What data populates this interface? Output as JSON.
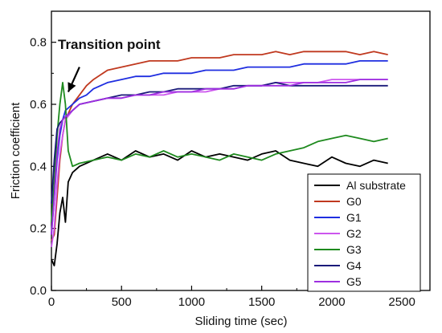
{
  "chart_data": {
    "type": "line",
    "xlabel": "Sliding time (sec)",
    "ylabel": "Friction coefficient",
    "xlim": [
      0,
      2700
    ],
    "ylim": [
      0.0,
      0.9
    ],
    "xticks": [
      0,
      500,
      1000,
      1500,
      2000,
      2500
    ],
    "yticks": [
      0.0,
      0.2,
      0.4,
      0.6,
      0.8
    ],
    "xtick_labels": [
      "0",
      "500",
      "1000",
      "1500",
      "2000",
      "2500"
    ],
    "ytick_labels": [
      "0.0",
      "0.2",
      "0.4",
      "0.6",
      "0.8"
    ],
    "grid": false,
    "legend_position": "bottom-right",
    "annotation": {
      "text": "Transition point",
      "arrow_to": [
        120,
        0.64
      ],
      "arrow_from": [
        200,
        0.72
      ]
    },
    "series": [
      {
        "name": "Al substrate",
        "color": "#000000",
        "x": [
          0,
          20,
          40,
          60,
          80,
          100,
          120,
          150,
          200,
          300,
          400,
          500,
          600,
          700,
          800,
          900,
          1000,
          1100,
          1200,
          1300,
          1400,
          1500,
          1600,
          1700,
          1800,
          1900,
          2000,
          2100,
          2200,
          2300,
          2400
        ],
        "y": [
          0.1,
          0.08,
          0.15,
          0.25,
          0.3,
          0.22,
          0.35,
          0.38,
          0.4,
          0.42,
          0.44,
          0.42,
          0.45,
          0.43,
          0.44,
          0.42,
          0.45,
          0.43,
          0.44,
          0.43,
          0.42,
          0.44,
          0.45,
          0.42,
          0.41,
          0.4,
          0.43,
          0.41,
          0.4,
          0.42,
          0.41
        ]
      },
      {
        "name": "G0",
        "color": "#c0391f",
        "x": [
          0,
          20,
          40,
          60,
          80,
          100,
          150,
          200,
          250,
          300,
          400,
          500,
          600,
          700,
          800,
          900,
          1000,
          1100,
          1200,
          1300,
          1400,
          1500,
          1600,
          1700,
          1800,
          1900,
          2000,
          2100,
          2200,
          2300,
          2400
        ],
        "y": [
          0.16,
          0.18,
          0.3,
          0.42,
          0.5,
          0.55,
          0.6,
          0.63,
          0.66,
          0.68,
          0.71,
          0.72,
          0.73,
          0.74,
          0.74,
          0.74,
          0.75,
          0.75,
          0.75,
          0.76,
          0.76,
          0.76,
          0.77,
          0.76,
          0.77,
          0.77,
          0.77,
          0.77,
          0.76,
          0.77,
          0.76
        ]
      },
      {
        "name": "G1",
        "color": "#1f2ee0",
        "x": [
          0,
          20,
          40,
          60,
          80,
          100,
          150,
          200,
          250,
          300,
          400,
          500,
          600,
          700,
          800,
          900,
          1000,
          1100,
          1200,
          1300,
          1400,
          1500,
          1600,
          1700,
          1800,
          1900,
          2000,
          2100,
          2200,
          2300,
          2400
        ],
        "y": [
          0.18,
          0.3,
          0.42,
          0.5,
          0.55,
          0.58,
          0.6,
          0.62,
          0.63,
          0.65,
          0.67,
          0.68,
          0.69,
          0.69,
          0.7,
          0.7,
          0.7,
          0.71,
          0.71,
          0.71,
          0.72,
          0.72,
          0.72,
          0.72,
          0.73,
          0.73,
          0.73,
          0.73,
          0.74,
          0.74,
          0.74
        ]
      },
      {
        "name": "G2",
        "color": "#cc55ee",
        "x": [
          0,
          20,
          40,
          60,
          80,
          100,
          150,
          200,
          300,
          400,
          500,
          600,
          700,
          800,
          900,
          1000,
          1100,
          1200,
          1300,
          1400,
          1500,
          1600,
          1700,
          1800,
          1900,
          2000,
          2100,
          2200,
          2300,
          2400
        ],
        "y": [
          0.14,
          0.2,
          0.34,
          0.44,
          0.5,
          0.55,
          0.58,
          0.6,
          0.61,
          0.62,
          0.62,
          0.63,
          0.63,
          0.63,
          0.64,
          0.64,
          0.64,
          0.65,
          0.65,
          0.66,
          0.66,
          0.67,
          0.67,
          0.67,
          0.67,
          0.68,
          0.68,
          0.68,
          0.68,
          0.68
        ]
      },
      {
        "name": "G3",
        "color": "#1e8a1e",
        "x": [
          0,
          20,
          40,
          60,
          80,
          100,
          120,
          150,
          200,
          300,
          400,
          500,
          600,
          700,
          800,
          900,
          1000,
          1100,
          1200,
          1300,
          1400,
          1500,
          1600,
          1700,
          1800,
          1900,
          2000,
          2100,
          2200,
          2300,
          2400
        ],
        "y": [
          0.22,
          0.35,
          0.5,
          0.6,
          0.67,
          0.6,
          0.45,
          0.4,
          0.41,
          0.42,
          0.43,
          0.42,
          0.44,
          0.43,
          0.45,
          0.43,
          0.44,
          0.43,
          0.42,
          0.44,
          0.43,
          0.42,
          0.44,
          0.45,
          0.46,
          0.48,
          0.49,
          0.5,
          0.49,
          0.48,
          0.49
        ]
      },
      {
        "name": "G4",
        "color": "#1a1a7a",
        "x": [
          0,
          20,
          40,
          60,
          80,
          100,
          150,
          200,
          300,
          400,
          500,
          600,
          700,
          800,
          900,
          1000,
          1100,
          1200,
          1300,
          1400,
          1500,
          1600,
          1700,
          1800,
          1900,
          2000,
          2100,
          2200,
          2300,
          2400
        ],
        "y": [
          0.28,
          0.42,
          0.52,
          0.54,
          0.55,
          0.56,
          0.58,
          0.6,
          0.61,
          0.62,
          0.63,
          0.63,
          0.64,
          0.64,
          0.65,
          0.65,
          0.65,
          0.65,
          0.66,
          0.66,
          0.66,
          0.67,
          0.66,
          0.66,
          0.66,
          0.66,
          0.66,
          0.66,
          0.66,
          0.66
        ]
      },
      {
        "name": "G5",
        "color": "#9d2fe0",
        "x": [
          0,
          20,
          40,
          60,
          80,
          100,
          150,
          200,
          300,
          400,
          500,
          600,
          700,
          800,
          900,
          1000,
          1100,
          1200,
          1300,
          1400,
          1500,
          1600,
          1700,
          1800,
          1900,
          2000,
          2100,
          2200,
          2300,
          2400
        ],
        "y": [
          0.18,
          0.3,
          0.44,
          0.52,
          0.55,
          0.56,
          0.58,
          0.6,
          0.61,
          0.62,
          0.62,
          0.63,
          0.63,
          0.64,
          0.64,
          0.64,
          0.65,
          0.65,
          0.65,
          0.66,
          0.66,
          0.66,
          0.66,
          0.67,
          0.67,
          0.67,
          0.67,
          0.68,
          0.68,
          0.68
        ]
      }
    ]
  }
}
